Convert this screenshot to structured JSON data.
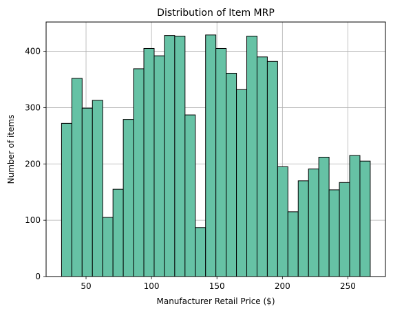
{
  "chart_data": {
    "type": "bar",
    "title": "Distribution of Item MRP",
    "xlabel": "Manufacturer Retail Price ($)",
    "ylabel": "Number of items",
    "bin_start": 31.29,
    "bin_width": 7.86,
    "values": [
      272,
      352,
      299,
      313,
      105,
      155,
      279,
      369,
      405,
      392,
      428,
      427,
      287,
      87,
      429,
      405,
      361,
      332,
      427,
      390,
      382,
      195,
      115,
      170,
      191,
      212,
      154,
      167,
      215,
      205
    ],
    "xlim": [
      19.5,
      278.7
    ],
    "ylim": [
      0,
      452
    ],
    "xticks": [
      50,
      100,
      150,
      200,
      250
    ],
    "yticks": [
      0,
      100,
      200,
      300,
      400
    ],
    "grid": true,
    "bar_color": "#66c2a5",
    "edge_color": "#000000"
  }
}
